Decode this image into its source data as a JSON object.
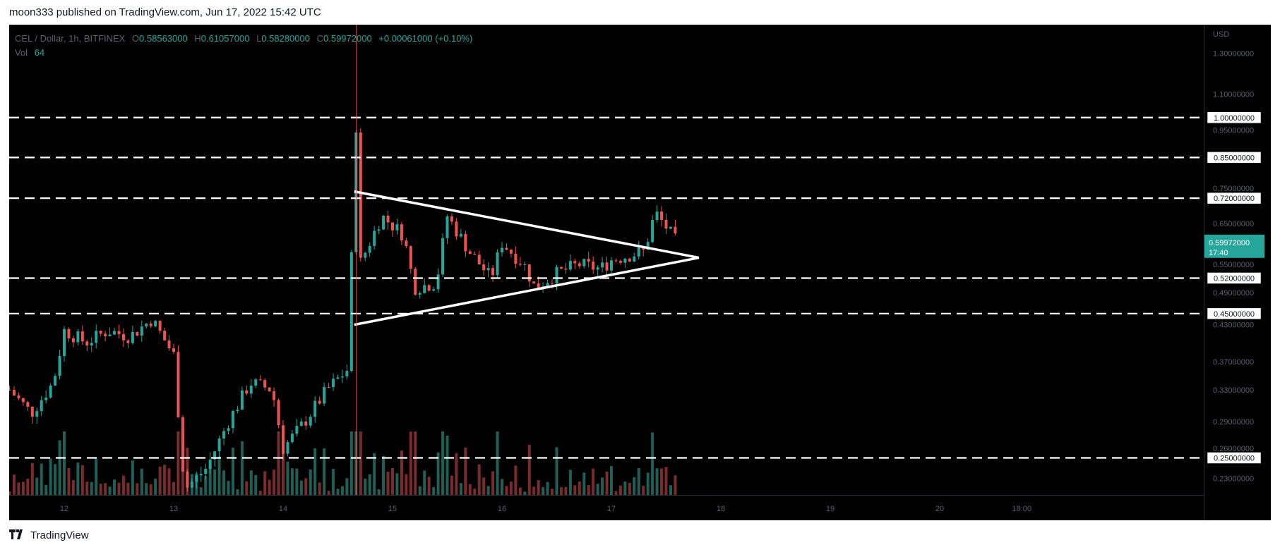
{
  "header": {
    "published_by": "moon333 published on TradingView.com, Jun 17, 2022 15:42 UTC"
  },
  "legend": {
    "symbol": "CEL / Dollar, 1h, BITFINEX",
    "o_label": "O",
    "o_value": "0.58563000",
    "h_label": "H",
    "h_value": "0.61057000",
    "l_label": "L",
    "l_value": "0.58280000",
    "c_label": "C",
    "c_value": "0.59972000",
    "change": "+0.00061000 (+0.10%)",
    "vol_label": "Vol",
    "vol_value": "64"
  },
  "footer": {
    "brand": "TradingView"
  },
  "colors": {
    "up": "#26a69a",
    "down": "#ef5350",
    "line": "#ffffff",
    "background": "#000000"
  },
  "chart_data": {
    "type": "candlestick",
    "currency": "USD",
    "y_axis": {
      "scale": "log",
      "range": [
        0.215,
        1.46
      ],
      "ticks": [
        "1.30000000",
        "1.10000000",
        "0.95000000",
        "0.75000000",
        "0.65000000",
        "0.55000000",
        "0.49000000",
        "0.43000000",
        "0.37000000",
        "0.33000000",
        "0.29000000",
        "0.26000000",
        "0.23000000"
      ]
    },
    "x_axis": {
      "ticks": [
        "12",
        "13",
        "14",
        "15",
        "16",
        "17",
        "18",
        "19",
        "20",
        "18:00"
      ]
    },
    "horizontal_levels": [
      {
        "value": 1.0,
        "label": "1.00000000"
      },
      {
        "value": 0.85,
        "label": "0.85000000"
      },
      {
        "value": 0.72,
        "label": "0.72000000"
      },
      {
        "value": 0.52,
        "label": "0.52000000"
      },
      {
        "value": 0.45,
        "label": "0.45000000"
      },
      {
        "value": 0.25,
        "label": "0.25000000"
      }
    ],
    "last_price": {
      "value": 0.59972,
      "label": "0.59972000",
      "countdown": "17:40"
    },
    "triangle_pattern": {
      "apex_date": "Jun 17 ~19:00",
      "upper_start": {
        "date": "Jun 14 ~16:00",
        "price": 0.74
      },
      "lower_start": {
        "date": "Jun 14 ~16:00",
        "price": 0.43
      },
      "apex_price": 0.565
    },
    "candles_description": "Hourly CEL/USD candles Jun 11–Jun 17 2022; approximate path shown",
    "price_path": [
      {
        "day": 11.5,
        "price": 0.33
      },
      {
        "day": 11.7,
        "price": 0.3
      },
      {
        "day": 11.9,
        "price": 0.34
      },
      {
        "day": 12.0,
        "price": 0.42
      },
      {
        "day": 12.2,
        "price": 0.4
      },
      {
        "day": 12.4,
        "price": 0.42
      },
      {
        "day": 12.6,
        "price": 0.41
      },
      {
        "day": 12.8,
        "price": 0.44
      },
      {
        "day": 13.0,
        "price": 0.38
      },
      {
        "day": 13.1,
        "price": 0.22
      },
      {
        "day": 13.3,
        "price": 0.24
      },
      {
        "day": 13.5,
        "price": 0.29
      },
      {
        "day": 13.7,
        "price": 0.34
      },
      {
        "day": 13.9,
        "price": 0.33
      },
      {
        "day": 14.0,
        "price": 0.26
      },
      {
        "day": 14.2,
        "price": 0.29
      },
      {
        "day": 14.4,
        "price": 0.33
      },
      {
        "day": 14.6,
        "price": 0.36
      },
      {
        "day": 14.64,
        "price": 0.74
      },
      {
        "day": 14.67,
        "price": 1.0
      },
      {
        "day": 14.7,
        "price": 0.55
      },
      {
        "day": 14.9,
        "price": 0.67
      },
      {
        "day": 15.1,
        "price": 0.62
      },
      {
        "day": 15.2,
        "price": 0.5
      },
      {
        "day": 15.4,
        "price": 0.51
      },
      {
        "day": 15.5,
        "price": 0.67
      },
      {
        "day": 15.7,
        "price": 0.58
      },
      {
        "day": 15.9,
        "price": 0.52
      },
      {
        "day": 16.0,
        "price": 0.6
      },
      {
        "day": 16.2,
        "price": 0.55
      },
      {
        "day": 16.3,
        "price": 0.5
      },
      {
        "day": 16.5,
        "price": 0.53
      },
      {
        "day": 16.7,
        "price": 0.55
      },
      {
        "day": 16.9,
        "price": 0.54
      },
      {
        "day": 17.0,
        "price": 0.56
      },
      {
        "day": 17.3,
        "price": 0.58
      },
      {
        "day": 17.4,
        "price": 0.68
      },
      {
        "day": 17.5,
        "price": 0.64
      },
      {
        "day": 17.6,
        "price": 0.6
      }
    ]
  }
}
